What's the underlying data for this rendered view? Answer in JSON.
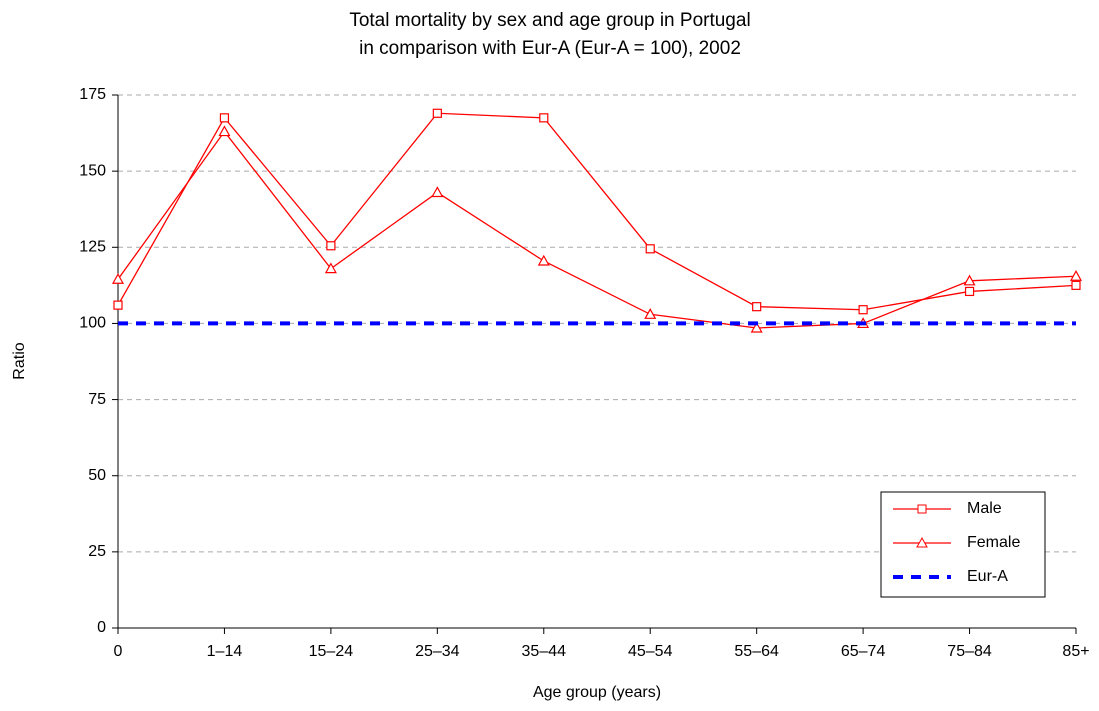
{
  "chart_data": {
    "type": "line",
    "title": [
      "Total mortality by sex and age group in Portugal",
      "in comparison with Eur-A (Eur-A = 100), 2002"
    ],
    "x_label": "Age group (years)",
    "y_label": "Ratio",
    "categories": [
      "0",
      "1–14",
      "15–24",
      "25–34",
      "35–44",
      "45–54",
      "55–64",
      "65–74",
      "75–84",
      "85+"
    ],
    "series": [
      {
        "name": "Male",
        "color": "#ff0000",
        "marker": "square",
        "dash": "solid",
        "values": [
          106,
          167.5,
          125.5,
          169,
          167.5,
          124.5,
          105.5,
          104.5,
          110.5,
          112.5
        ]
      },
      {
        "name": "Female",
        "color": "#ff0000",
        "marker": "triangle",
        "dash": "solid",
        "values": [
          114.5,
          163,
          118,
          143,
          120.5,
          103,
          98.5,
          100,
          114,
          115.5
        ]
      },
      {
        "name": "Eur-A",
        "color": "#0000ff",
        "marker": "none",
        "dash": "dashed",
        "values": [
          100,
          100,
          100,
          100,
          100,
          100,
          100,
          100,
          100,
          100
        ]
      }
    ],
    "ylim": [
      0,
      175
    ],
    "yticks": [
      0,
      25,
      50,
      75,
      100,
      125,
      150,
      175
    ],
    "grid": true,
    "legend": "lower right"
  }
}
